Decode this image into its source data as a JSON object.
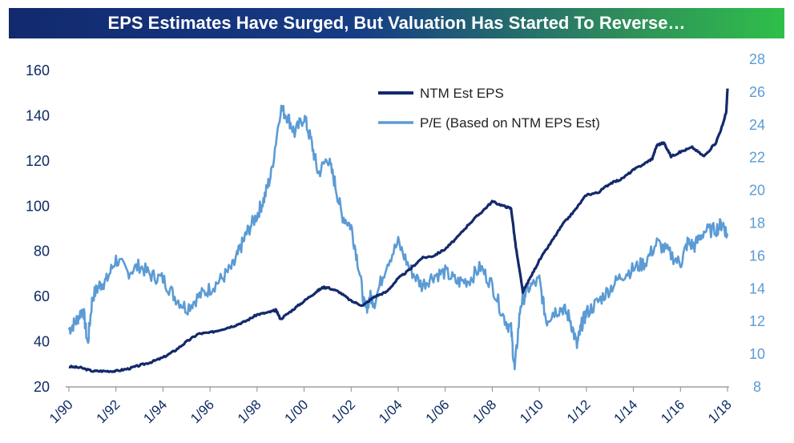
{
  "title": "EPS Estimates Have Surged, But Valuation Has Started To Reverse…",
  "chart_data": {
    "type": "line",
    "x_ticks": [
      "1/90",
      "1/92",
      "1/94",
      "1/96",
      "1/98",
      "1/00",
      "1/02",
      "1/04",
      "1/06",
      "1/08",
      "1/10",
      "1/12",
      "1/14",
      "1/16",
      "1/18"
    ],
    "y_left": {
      "ticks": [
        20,
        40,
        60,
        80,
        100,
        120,
        140,
        160
      ],
      "range": [
        20,
        160
      ]
    },
    "y_right": {
      "ticks": [
        8,
        10,
        12,
        14,
        16,
        18,
        20,
        22,
        24,
        26,
        28
      ],
      "range": [
        8,
        28
      ]
    },
    "legend": {
      "placement": "top-center"
    },
    "grid": false,
    "series": [
      {
        "name": "NTM Est EPS",
        "axis": "left",
        "color": "#13296b",
        "x": [
          1990.0,
          1990.5,
          1991.0,
          1991.5,
          1992.0,
          1992.5,
          1993.0,
          1993.5,
          1994.0,
          1994.5,
          1995.0,
          1995.5,
          1996.0,
          1996.5,
          1997.0,
          1997.5,
          1998.0,
          1998.5,
          1998.8,
          1999.0,
          1999.5,
          2000.0,
          2000.5,
          2000.8,
          2001.0,
          2001.5,
          2002.0,
          2002.5,
          2003.0,
          2003.5,
          2004.0,
          2004.5,
          2005.0,
          2005.5,
          2006.0,
          2006.5,
          2007.0,
          2007.5,
          2008.0,
          2008.5,
          2008.8,
          2009.0,
          2009.3,
          2009.6,
          2010.0,
          2010.5,
          2011.0,
          2011.5,
          2012.0,
          2012.5,
          2013.0,
          2013.5,
          2014.0,
          2014.5,
          2014.8,
          2015.0,
          2015.3,
          2015.6,
          2016.0,
          2016.5,
          2017.0,
          2017.5,
          2017.8,
          2017.95,
          2018.0
        ],
        "y": [
          29,
          28.5,
          27,
          27,
          27,
          28,
          29.5,
          31,
          33,
          36,
          40,
          43.5,
          44,
          45.5,
          47,
          49,
          52,
          53,
          54,
          50,
          54,
          58,
          62,
          64,
          64,
          62,
          58,
          56,
          60,
          62,
          68,
          72,
          77,
          78,
          81,
          86,
          92,
          97,
          102,
          100,
          99,
          82,
          62,
          68,
          76,
          84,
          92,
          98,
          105,
          106,
          110,
          112,
          116,
          119,
          121,
          127,
          128,
          122,
          124,
          126,
          122,
          128,
          136,
          142,
          152
        ]
      },
      {
        "name": "P/E (Based on NTM EPS Est)",
        "axis": "right",
        "color": "#5b9bd5",
        "x": [
          1990.0,
          1990.3,
          1990.6,
          1990.8,
          1991.0,
          1991.3,
          1991.6,
          1992.0,
          1992.5,
          1993.0,
          1993.5,
          1994.0,
          1994.5,
          1995.0,
          1995.5,
          1996.0,
          1996.5,
          1997.0,
          1997.3,
          1997.6,
          1998.0,
          1998.3,
          1998.6,
          1999.0,
          1999.3,
          1999.6,
          2000.0,
          2000.3,
          2000.6,
          2001.0,
          2001.3,
          2001.6,
          2002.0,
          2002.3,
          2002.6,
          2002.8,
          2003.0,
          2003.5,
          2004.0,
          2004.5,
          2005.0,
          2005.5,
          2006.0,
          2006.5,
          2007.0,
          2007.5,
          2008.0,
          2008.5,
          2008.8,
          2008.95,
          2009.2,
          2009.5,
          2010.0,
          2010.3,
          2010.6,
          2011.0,
          2011.3,
          2011.6,
          2011.8,
          2012.0,
          2012.5,
          2013.0,
          2013.5,
          2014.0,
          2014.5,
          2015.0,
          2015.5,
          2016.0,
          2016.3,
          2016.6,
          2017.0,
          2017.5,
          2017.8,
          2018.0
        ],
        "y": [
          11.5,
          12.0,
          12.8,
          10.6,
          13.5,
          14.2,
          14.5,
          15.8,
          15.0,
          15.4,
          14.8,
          14.6,
          13.5,
          12.8,
          13.5,
          14.0,
          14.6,
          15.4,
          16.5,
          17.5,
          18.5,
          19.5,
          21.0,
          25.0,
          24.5,
          23.5,
          24.5,
          23.0,
          21.0,
          22.0,
          20.5,
          18.5,
          17.8,
          15.5,
          12.6,
          13.5,
          13.2,
          15.5,
          16.8,
          15.2,
          14.2,
          14.8,
          15.0,
          14.4,
          14.5,
          15.3,
          14.2,
          12.2,
          11.5,
          9.0,
          13.0,
          14.0,
          14.5,
          12.0,
          12.6,
          12.8,
          12.2,
          10.5,
          11.8,
          12.5,
          13.2,
          14.0,
          14.8,
          15.2,
          15.6,
          16.8,
          16.2,
          15.5,
          16.8,
          16.6,
          17.5,
          17.6,
          18.0,
          17.2
        ]
      }
    ]
  }
}
